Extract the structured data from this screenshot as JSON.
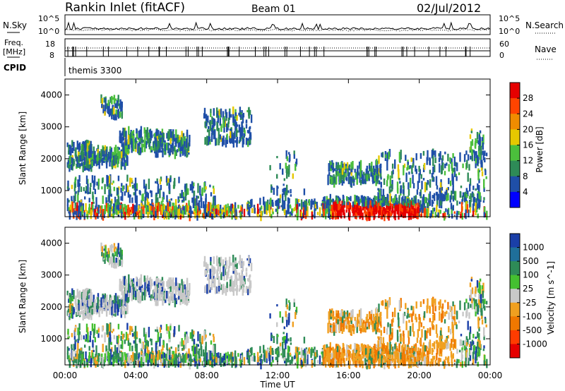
{
  "header": {
    "station": "Rankin Inlet (fitACF)",
    "beam": "Beam 01",
    "date": "02/Jul/2012"
  },
  "panels": {
    "nsky": {
      "left_label": "N.Sky",
      "right_label": "N.Search",
      "tick_top": "10^5",
      "tick_bottom": "10^0",
      "right_tick_top": "10^5",
      "right_tick_bottom": "10^0"
    },
    "freq": {
      "left_label_1": "Freq.",
      "left_label_2": "[MHz]",
      "cpid_label": "CPID",
      "right_label": "Nave",
      "tick_top": "18",
      "tick_bottom": "8",
      "right_tick_top": "60",
      "right_tick_bottom": "0",
      "cpid_text": "themis 3300"
    }
  },
  "chart_data": [
    {
      "type": "heatmap",
      "name": "power",
      "ylabel": "Slant Range [km]",
      "y_ticks": [
        "1000",
        "2000",
        "3000",
        "4000"
      ],
      "ylim": [
        180,
        4500
      ],
      "xlim_hours": [
        0,
        24
      ],
      "colorbar": {
        "label": "Power [dB]",
        "ticks": [
          "4",
          "8",
          "12",
          "16",
          "20",
          "24",
          "28"
        ],
        "colors": [
          "#0000ff",
          "#1f4fa8",
          "#2e8b57",
          "#4bbf3c",
          "#e6c800",
          "#f08c00",
          "#ff4400",
          "#e60000"
        ]
      }
    },
    {
      "type": "heatmap",
      "name": "velocity",
      "ylabel": "Slant Range [km]",
      "y_ticks": [
        "1000",
        "2000",
        "3000",
        "4000"
      ],
      "ylim": [
        180,
        4500
      ],
      "xlim_hours": [
        0,
        24
      ],
      "xlabel": "Time UT",
      "x_ticks": [
        "00:00",
        "04:00",
        "08:00",
        "12:00",
        "16:00",
        "20:00",
        "00:00"
      ],
      "colorbar": {
        "label": "Velocity [m s^-1]",
        "ticks": [
          "1000",
          "500",
          "100",
          "25",
          "-25",
          "-100",
          "-500",
          "-1000"
        ],
        "colors": [
          "#1a3fa8",
          "#1f6f9a",
          "#2e8b57",
          "#44c030",
          "#c8c8c8",
          "#f0a020",
          "#f07800",
          "#ff3c00",
          "#e60000"
        ]
      }
    }
  ]
}
